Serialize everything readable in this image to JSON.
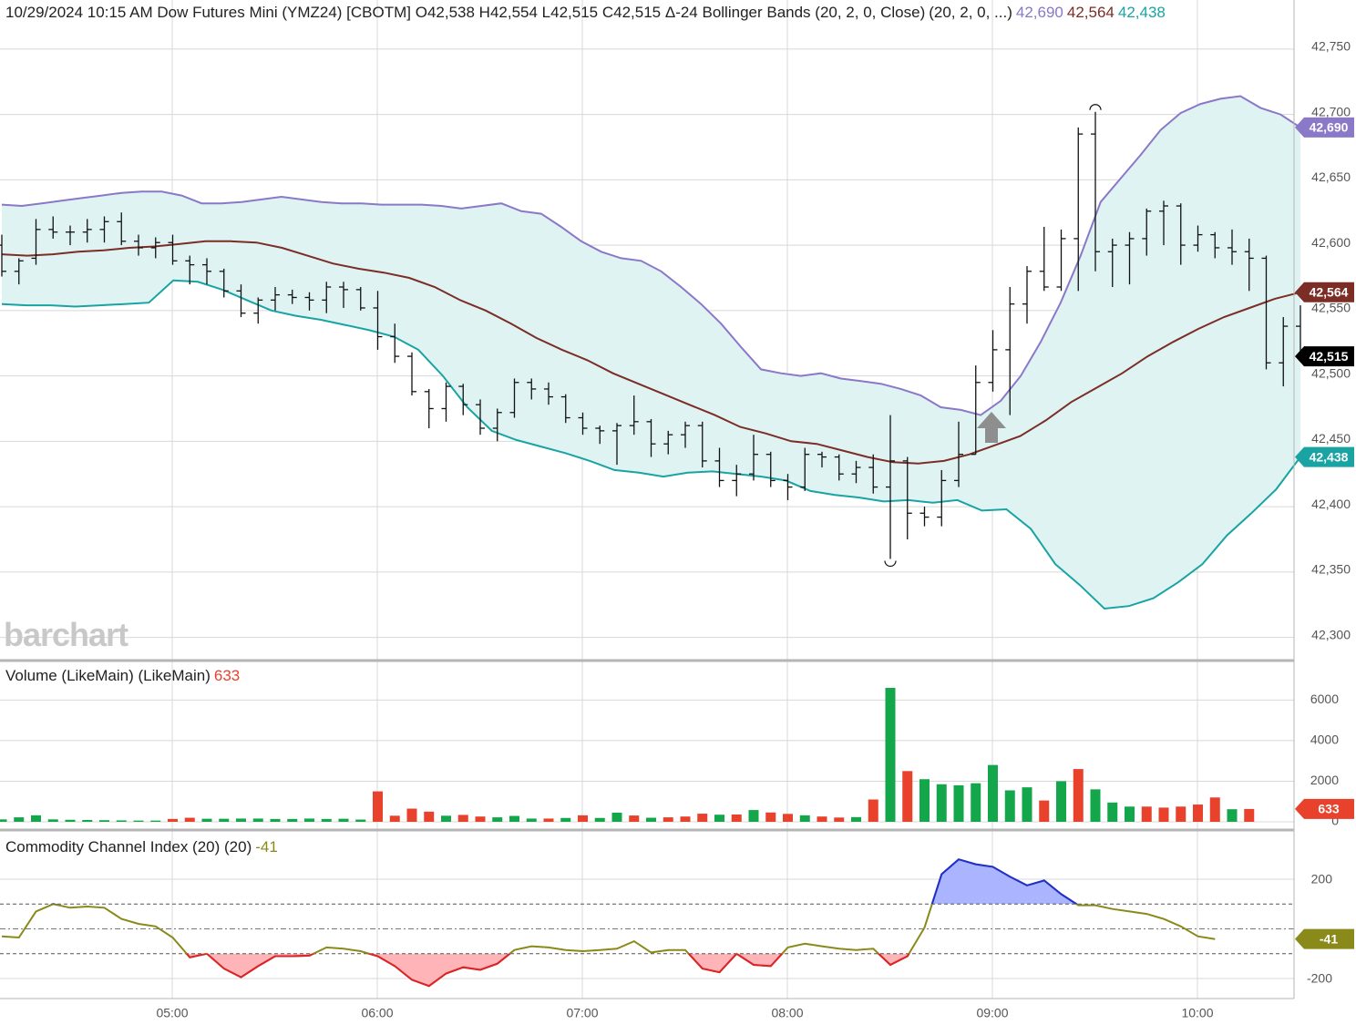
{
  "header": {
    "main_title": "10/29/2024 10:15 AM Dow Futures Mini (YMZ24) [CBOTM] O42,538 H42,554 L42,515 C42,515 Δ-24 Bollinger Bands (20, 2, 0, Close)",
    "bb_params": "(20, 2, 0, ...)",
    "bb_upper": "42,690",
    "bb_mid": "42,564",
    "bb_lower": "42,438",
    "volume_title": "Volume (LikeMain)  (LikeMain)",
    "volume_value": "633",
    "cci_title": "Commodity Channel Index (20)  (20)",
    "cci_value": "-41"
  },
  "watermark": "barchart",
  "colors": {
    "upper": "#8a78c8",
    "mid": "#7b2d26",
    "lower": "#1aa3a3",
    "band_fill": "#dff3f3",
    "up_volume": "#13a64a",
    "down_volume": "#e8412c",
    "cci_line": "#8a8a1a",
    "cci_pos_fill": "#aab4ff",
    "cci_neg_fill": "#ffb4b8",
    "cci_pos_line": "#1f2fd1",
    "cci_neg_line": "#e0202a",
    "last_price_tag": "#000000"
  },
  "chart_data": [
    {
      "type": "ohlc",
      "panel": "price",
      "interval": "5 min",
      "x_tick_labels": [
        "05:00",
        "06:00",
        "07:00",
        "08:00",
        "09:00",
        "10:00"
      ],
      "y_ticks": [
        42300,
        42350,
        42400,
        42450,
        42500,
        42550,
        42600,
        42650,
        42700,
        42750
      ],
      "y_tick_labels": [
        "42,300",
        "42,350",
        "42,400",
        "42,450",
        "42,500",
        "42,550",
        "42,600",
        "42,650",
        "42,700",
        "42,750"
      ],
      "ylim": [
        42283,
        42768
      ],
      "bars": [
        [
          42600,
          42608,
          42576,
          42580
        ],
        [
          42580,
          42590,
          42570,
          42588
        ],
        [
          42590,
          42620,
          42585,
          42612
        ],
        [
          42612,
          42622,
          42605,
          42610
        ],
        [
          42610,
          42615,
          42600,
          42610
        ],
        [
          42610,
          42620,
          42602,
          42612
        ],
        [
          42612,
          42622,
          42602,
          42618
        ],
        [
          42618,
          42625,
          42600,
          42603
        ],
        [
          42603,
          42608,
          42592,
          42598
        ],
        [
          42598,
          42606,
          42590,
          42602
        ],
        [
          42602,
          42608,
          42585,
          42588
        ],
        [
          42588,
          42592,
          42570,
          42585
        ],
        [
          42585,
          42590,
          42570,
          42580
        ],
        [
          42580,
          42582,
          42560,
          42565
        ],
        [
          42565,
          42570,
          42545,
          42548
        ],
        [
          42548,
          42560,
          42540,
          42558
        ],
        [
          42558,
          42568,
          42550,
          42562
        ],
        [
          42562,
          42566,
          42555,
          42560
        ],
        [
          42560,
          42564,
          42550,
          42558
        ],
        [
          42558,
          42572,
          42548,
          42568
        ],
        [
          42568,
          42572,
          42552,
          42566
        ],
        [
          42566,
          42568,
          42550,
          42552
        ],
        [
          42552,
          42565,
          42520,
          42530
        ],
        [
          42530,
          42540,
          42510,
          42515
        ],
        [
          42515,
          42518,
          42485,
          42488
        ],
        [
          42488,
          42490,
          42460,
          42475
        ],
        [
          42475,
          42495,
          42465,
          42492
        ],
        [
          42492,
          42494,
          42470,
          42478
        ],
        [
          42478,
          42482,
          42455,
          42460
        ],
        [
          42460,
          42475,
          42450,
          42472
        ],
        [
          42472,
          42498,
          42468,
          42495
        ],
        [
          42495,
          42498,
          42482,
          42490
        ],
        [
          42490,
          42495,
          42478,
          42484
        ],
        [
          42484,
          42486,
          42464,
          42468
        ],
        [
          42468,
          42472,
          42455,
          42460
        ],
        [
          42460,
          42462,
          42448,
          42458
        ],
        [
          42458,
          42464,
          42432,
          42462
        ],
        [
          42462,
          42485,
          42455,
          42465
        ],
        [
          42465,
          42467,
          42438,
          42448
        ],
        [
          42448,
          42458,
          42440,
          42455
        ],
        [
          42455,
          42465,
          42445,
          42462
        ],
        [
          42462,
          42465,
          42430,
          42435
        ],
        [
          42435,
          42445,
          42415,
          42420
        ],
        [
          42420,
          42432,
          42408,
          42425
        ],
        [
          42425,
          42455,
          42420,
          42440
        ],
        [
          42440,
          42442,
          42415,
          42420
        ],
        [
          42420,
          42425,
          42405,
          42415
        ],
        [
          42415,
          42445,
          42412,
          42440
        ],
        [
          42440,
          42442,
          42430,
          42438
        ],
        [
          42438,
          42440,
          42420,
          42425
        ],
        [
          42425,
          42435,
          42418,
          42430
        ],
        [
          42430,
          42440,
          42410,
          42415
        ],
        [
          42415,
          42470,
          42360,
          42435
        ],
        [
          42435,
          42438,
          42375,
          42395
        ],
        [
          42395,
          42400,
          42385,
          42392
        ],
        [
          42392,
          42428,
          42385,
          42420
        ],
        [
          42420,
          42465,
          42415,
          42440
        ],
        [
          42440,
          42508,
          42440,
          42495
        ],
        [
          42495,
          42535,
          42488,
          42520
        ],
        [
          42520,
          42568,
          42470,
          42555
        ],
        [
          42555,
          42584,
          42540,
          42580
        ],
        [
          42580,
          42614,
          42565,
          42568
        ],
        [
          42568,
          42612,
          42565,
          42605
        ],
        [
          42605,
          42690,
          42565,
          42685
        ],
        [
          42685,
          42702,
          42580,
          42595
        ],
        [
          42595,
          42605,
          42568,
          42600
        ],
        [
          42600,
          42610,
          42570,
          42605
        ],
        [
          42605,
          42628,
          42592,
          42626
        ],
        [
          42626,
          42634,
          42600,
          42630
        ],
        [
          42630,
          42632,
          42585,
          42600
        ],
        [
          42600,
          42615,
          42595,
          42608
        ],
        [
          42608,
          42610,
          42590,
          42598
        ],
        [
          42598,
          42612,
          42585,
          42595
        ],
        [
          42595,
          42605,
          42565,
          42590
        ],
        [
          42590,
          42592,
          42505,
          42510
        ],
        [
          42510,
          42545,
          42492,
          42538
        ],
        [
          42538,
          42554,
          42515,
          42515
        ]
      ],
      "bollinger_upper": [
        42631,
        42630,
        42632,
        42634,
        42636,
        42638,
        42640,
        42641,
        42641,
        42638,
        42632,
        42632,
        42633,
        42635,
        42637,
        42635,
        42633,
        42632,
        42632,
        42631,
        42631,
        42631,
        42630,
        42628,
        42630,
        42632,
        42626,
        42624,
        42614,
        42603,
        42595,
        42590,
        42588,
        42580,
        42568,
        42555,
        42540,
        42522,
        42505,
        42502,
        42500,
        42502,
        42498,
        42496,
        42494,
        42490,
        42485,
        42476,
        42474,
        42470,
        42481,
        42500,
        42526,
        42556,
        42592,
        42633,
        42651,
        42669,
        42688,
        42701,
        42708,
        42712,
        42714,
        42705,
        42700,
        42690
      ],
      "bollinger_mid": [
        42593,
        42592,
        42593,
        42595,
        42596,
        42598,
        42599,
        42601,
        42603,
        42603,
        42602,
        42598,
        42592,
        42586,
        42582,
        42579,
        42575,
        42568,
        42558,
        42550,
        42540,
        42529,
        42520,
        42512,
        42502,
        42494,
        42486,
        42478,
        42470,
        42461,
        42456,
        42450,
        42448,
        42443,
        42438,
        42434,
        42433,
        42435,
        42440,
        42447,
        42454,
        42466,
        42480,
        42491,
        42502,
        42515,
        42526,
        42536,
        42545,
        42552,
        42559,
        42564
      ],
      "bollinger_lower": [
        42555,
        42554,
        42554,
        42553,
        42554,
        42555,
        42556,
        42573,
        42572,
        42566,
        42558,
        42550,
        42546,
        42543,
        42539,
        42535,
        42530,
        42520,
        42500,
        42476,
        42458,
        42451,
        42446,
        42441,
        42435,
        42428,
        42426,
        42423,
        42426,
        42427,
        42425,
        42423,
        42420,
        42412,
        42409,
        42407,
        42404,
        42405,
        42403,
        42405,
        42397,
        42398,
        42383,
        42356,
        42340,
        42322,
        42324,
        42330,
        42342,
        42356,
        42378,
        42395,
        42413,
        42438
      ]
    },
    {
      "type": "bar",
      "panel": "volume",
      "title": "Volume (LikeMain)",
      "y_ticks": [
        0,
        2000,
        4000,
        6000
      ],
      "y_tick_labels": [
        "0",
        "2000",
        "4000",
        "6000"
      ],
      "ylim": [
        0,
        6600
      ],
      "values": [
        120,
        220,
        320,
        120,
        100,
        90,
        80,
        70,
        60,
        60,
        140,
        200,
        150,
        150,
        160,
        160,
        140,
        140,
        160,
        140,
        150,
        110,
        1500,
        300,
        650,
        500,
        300,
        340,
        260,
        220,
        290,
        160,
        160,
        190,
        320,
        190,
        450,
        310,
        200,
        220,
        260,
        400,
        350,
        360,
        580,
        460,
        390,
        320,
        260,
        210,
        230,
        1100,
        6600,
        2500,
        2100,
        1850,
        1800,
        1900,
        2800,
        1550,
        1700,
        1050,
        2000,
        2600,
        1600,
        950,
        750,
        750,
        700,
        750,
        850,
        1200,
        620,
        633
      ],
      "up": [
        true,
        true,
        true,
        true,
        true,
        true,
        true,
        true,
        true,
        true,
        false,
        false,
        true,
        true,
        true,
        true,
        true,
        true,
        true,
        true,
        true,
        true,
        false,
        false,
        false,
        false,
        true,
        false,
        false,
        true,
        true,
        true,
        false,
        true,
        false,
        true,
        true,
        false,
        true,
        false,
        false,
        false,
        true,
        false,
        true,
        false,
        false,
        true,
        false,
        false,
        true,
        false,
        true,
        false,
        true,
        true,
        true,
        true,
        true,
        true,
        true,
        false,
        true,
        false,
        true,
        true,
        true,
        false,
        false,
        false,
        false,
        false,
        true,
        false
      ]
    },
    {
      "type": "line",
      "panel": "cci",
      "title": "Commodity Channel Index (20)",
      "y_ticks": [
        -200,
        200
      ],
      "y_tick_labels": [
        "-200",
        "200"
      ],
      "reference_lines": [
        -100,
        0,
        100
      ],
      "ylim": [
        -280,
        300
      ],
      "values": [
        -30,
        -35,
        70,
        100,
        85,
        90,
        85,
        40,
        20,
        10,
        -35,
        -115,
        -100,
        -160,
        -195,
        -150,
        -110,
        -110,
        -108,
        -75,
        -80,
        -90,
        -110,
        -150,
        -205,
        -230,
        -180,
        -155,
        -165,
        -140,
        -85,
        -70,
        -75,
        -85,
        -90,
        -85,
        -80,
        -50,
        -95,
        -85,
        -85,
        -160,
        -175,
        -100,
        -145,
        -150,
        -75,
        -60,
        -70,
        -80,
        -85,
        -80,
        -145,
        -110,
        5,
        220,
        280,
        260,
        250,
        210,
        175,
        195,
        140,
        95,
        95,
        80,
        70,
        60,
        40,
        10,
        -30,
        -41
      ]
    }
  ]
}
